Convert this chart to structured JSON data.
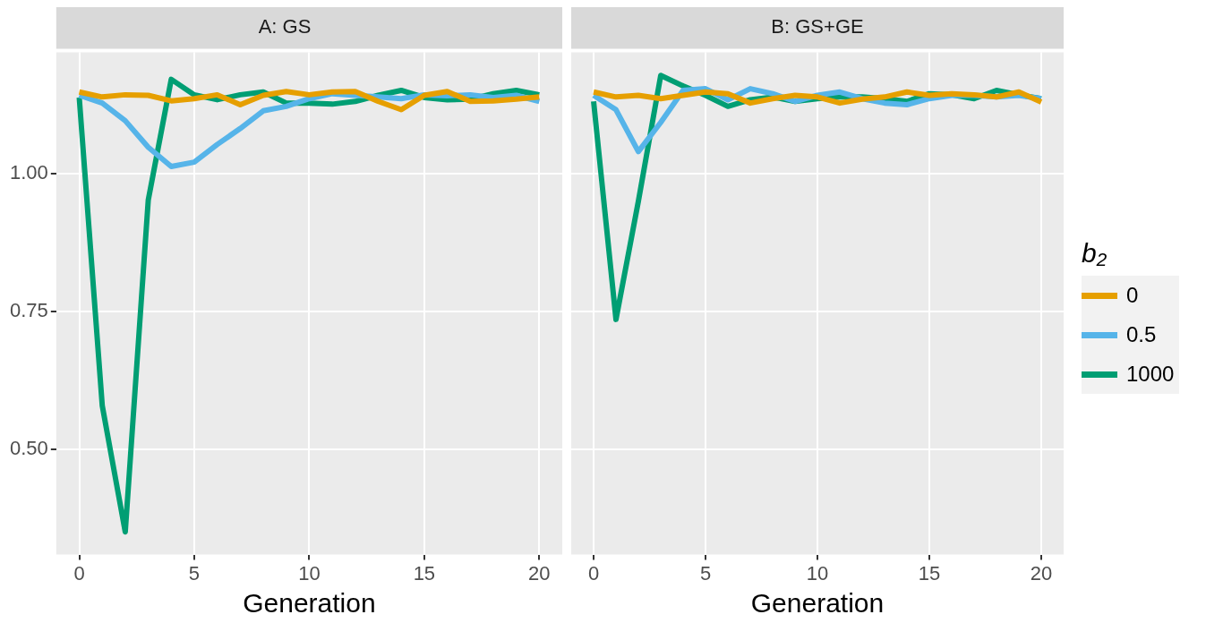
{
  "chart_data": [
    {
      "type": "line",
      "title": "A: GS",
      "xlabel": "Generation",
      "x": [
        0,
        1,
        2,
        3,
        4,
        5,
        6,
        7,
        8,
        9,
        10,
        11,
        12,
        13,
        14,
        15,
        16,
        17,
        18,
        19,
        20
      ],
      "xlim": [
        -1,
        21
      ],
      "xticks": [
        0,
        5,
        10,
        15,
        20
      ],
      "ylim": [
        0.31,
        1.22
      ],
      "yticks": [
        {
          "value": 0.5,
          "label": "0.50"
        },
        {
          "value": 0.75,
          "label": "0.75"
        },
        {
          "value": 1,
          "label": "1.00"
        }
      ],
      "grid": true,
      "legend": false,
      "series": [
        {
          "color": "#e69f00",
          "values": [
            1.148,
            1.139,
            1.143,
            1.142,
            1.132,
            1.136,
            1.143,
            1.125,
            1.142,
            1.149,
            1.143,
            1.148,
            1.149,
            1.131,
            1.116,
            1.142,
            1.149,
            1.131,
            1.132,
            1.135,
            1.139
          ]
        },
        {
          "color": "#56b4e9",
          "values": [
            1.142,
            1.128,
            1.096,
            1.048,
            1.013,
            1.021,
            1.053,
            1.082,
            1.114,
            1.122,
            1.136,
            1.145,
            1.142,
            1.139,
            1.136,
            1.143,
            1.141,
            1.143,
            1.138,
            1.142,
            1.131
          ]
        },
        {
          "color": "#009e73",
          "values": [
            1.138,
            0.58,
            0.351,
            0.952,
            1.171,
            1.143,
            1.134,
            1.143,
            1.148,
            1.128,
            1.128,
            1.126,
            1.131,
            1.142,
            1.151,
            1.138,
            1.134,
            1.135,
            1.145,
            1.151,
            1.143
          ]
        }
      ]
    },
    {
      "type": "line",
      "title": "B: GS+GE",
      "xlabel": "Generation",
      "x": [
        0,
        1,
        2,
        3,
        4,
        5,
        6,
        7,
        8,
        9,
        10,
        11,
        12,
        13,
        14,
        15,
        16,
        17,
        18,
        19,
        20
      ],
      "xlim": [
        -1,
        21
      ],
      "xticks": [
        0,
        5,
        10,
        15,
        20
      ],
      "ylim": [
        0.31,
        1.22
      ],
      "yticks": [
        0.5,
        0.75,
        1
      ],
      "tick_labels": "x",
      "grid": true,
      "legend": "right",
      "legend_title": "b₂",
      "series": [
        {
          "name": "0",
          "color": "#e69f00",
          "values": [
            1.148,
            1.139,
            1.142,
            1.136,
            1.142,
            1.148,
            1.145,
            1.128,
            1.136,
            1.142,
            1.139,
            1.128,
            1.135,
            1.139,
            1.148,
            1.142,
            1.145,
            1.143,
            1.139,
            1.148,
            1.13
          ]
        },
        {
          "name": "0.5",
          "color": "#56b4e9",
          "values": [
            1.142,
            1.116,
            1.04,
            1.093,
            1.151,
            1.154,
            1.134,
            1.154,
            1.145,
            1.131,
            1.142,
            1.148,
            1.136,
            1.128,
            1.125,
            1.136,
            1.142,
            1.142,
            1.139,
            1.142,
            1.136
          ]
        },
        {
          "name": "1000",
          "color": "#009e73",
          "values": [
            1.131,
            0.736,
            0.95,
            1.178,
            1.159,
            1.142,
            1.122,
            1.134,
            1.139,
            1.131,
            1.136,
            1.139,
            1.139,
            1.136,
            1.131,
            1.145,
            1.143,
            1.136,
            1.151,
            1.143,
            1.136
          ]
        }
      ]
    }
  ]
}
